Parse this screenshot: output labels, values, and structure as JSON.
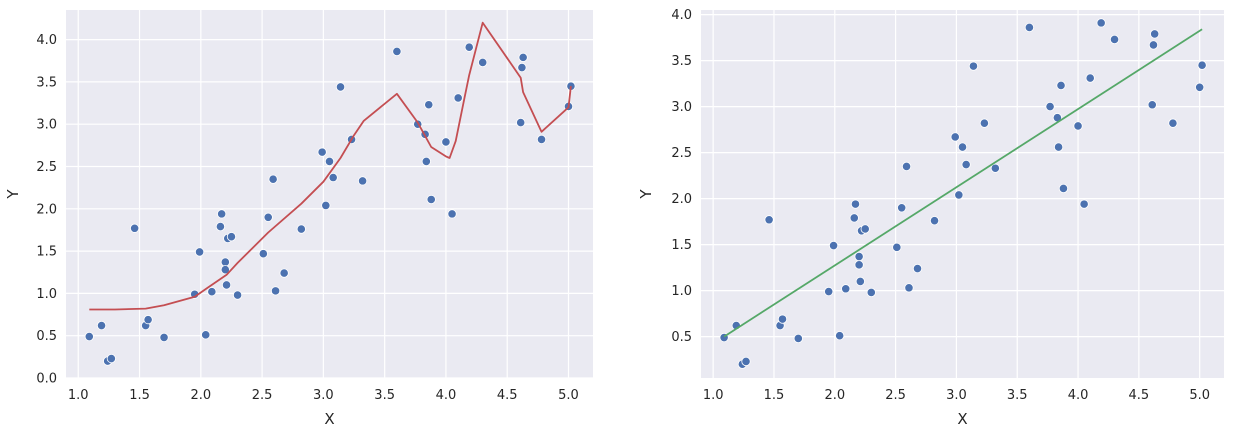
{
  "chart_data": [
    {
      "type": "scatter",
      "xlabel": "X",
      "ylabel": "Y",
      "xlim": [
        0.9,
        5.2
      ],
      "ylim": [
        0.0,
        4.35
      ],
      "xticks": [
        "1.0",
        "1.5",
        "2.0",
        "2.5",
        "3.0",
        "3.5",
        "4.0",
        "4.5",
        "5.0"
      ],
      "yticks": [
        "0.0",
        "0.5",
        "1.0",
        "1.5",
        "2.0",
        "2.5",
        "3.0",
        "3.5",
        "4.0"
      ],
      "grid": true,
      "background": "#eaeaf2",
      "point_color": "#4c72b0",
      "line_color": "#c44e52",
      "points": [
        [
          1.09,
          0.49
        ],
        [
          1.19,
          0.62
        ],
        [
          1.24,
          0.2
        ],
        [
          1.27,
          0.23
        ],
        [
          1.46,
          1.77
        ],
        [
          1.55,
          0.62
        ],
        [
          1.57,
          0.69
        ],
        [
          1.7,
          0.48
        ],
        [
          1.95,
          0.99
        ],
        [
          1.99,
          1.49
        ],
        [
          2.04,
          0.51
        ],
        [
          2.09,
          1.02
        ],
        [
          2.16,
          1.79
        ],
        [
          2.17,
          1.94
        ],
        [
          2.2,
          1.37
        ],
        [
          2.2,
          1.28
        ],
        [
          2.21,
          1.1
        ],
        [
          2.22,
          1.65
        ],
        [
          2.25,
          1.67
        ],
        [
          2.3,
          0.98
        ],
        [
          2.51,
          1.47
        ],
        [
          2.55,
          1.9
        ],
        [
          2.59,
          2.35
        ],
        [
          2.61,
          1.03
        ],
        [
          2.68,
          1.24
        ],
        [
          2.82,
          1.76
        ],
        [
          2.99,
          2.67
        ],
        [
          3.02,
          2.04
        ],
        [
          3.05,
          2.56
        ],
        [
          3.08,
          2.37
        ],
        [
          3.14,
          3.44
        ],
        [
          3.23,
          2.82
        ],
        [
          3.32,
          2.33
        ],
        [
          3.6,
          3.86
        ],
        [
          3.77,
          3.0
        ],
        [
          3.83,
          2.88
        ],
        [
          3.84,
          2.56
        ],
        [
          3.86,
          3.23
        ],
        [
          3.88,
          2.11
        ],
        [
          4.0,
          2.79
        ],
        [
          4.05,
          1.94
        ],
        [
          4.1,
          3.31
        ],
        [
          4.19,
          3.91
        ],
        [
          4.3,
          3.73
        ],
        [
          4.61,
          3.02
        ],
        [
          4.62,
          3.67
        ],
        [
          4.63,
          3.79
        ],
        [
          4.78,
          2.82
        ],
        [
          5.0,
          3.21
        ],
        [
          5.02,
          3.45
        ]
      ],
      "line": [
        [
          1.09,
          0.81
        ],
        [
          1.3,
          0.81
        ],
        [
          1.55,
          0.82
        ],
        [
          1.7,
          0.86
        ],
        [
          1.95,
          0.96
        ],
        [
          2.05,
          1.06
        ],
        [
          2.21,
          1.22
        ],
        [
          2.3,
          1.36
        ],
        [
          2.55,
          1.72
        ],
        [
          2.82,
          2.06
        ],
        [
          3.0,
          2.32
        ],
        [
          3.14,
          2.6
        ],
        [
          3.25,
          2.87
        ],
        [
          3.33,
          3.04
        ],
        [
          3.6,
          3.36
        ],
        [
          3.77,
          3.02
        ],
        [
          3.88,
          2.73
        ],
        [
          4.0,
          2.62
        ],
        [
          4.03,
          2.6
        ],
        [
          4.08,
          2.8
        ],
        [
          4.15,
          3.3
        ],
        [
          4.19,
          3.58
        ],
        [
          4.3,
          4.2
        ],
        [
          4.61,
          3.55
        ],
        [
          4.63,
          3.38
        ],
        [
          4.78,
          2.91
        ],
        [
          5.0,
          3.2
        ],
        [
          5.02,
          3.45
        ]
      ]
    },
    {
      "type": "scatter",
      "xlabel": "X",
      "ylabel": "Y",
      "xlim": [
        0.9,
        5.2
      ],
      "ylim": [
        0.05,
        4.05
      ],
      "xticks": [
        "1.0",
        "1.5",
        "2.0",
        "2.5",
        "3.0",
        "3.5",
        "4.0",
        "4.5",
        "5.0"
      ],
      "yticks": [
        "0.5",
        "1.0",
        "1.5",
        "2.0",
        "2.5",
        "3.0",
        "3.5",
        "4.0"
      ],
      "grid": true,
      "background": "#eaeaf2",
      "point_color": "#4c72b0",
      "line_color": "#55a868",
      "points": [
        [
          1.09,
          0.49
        ],
        [
          1.19,
          0.62
        ],
        [
          1.24,
          0.2
        ],
        [
          1.27,
          0.23
        ],
        [
          1.46,
          1.77
        ],
        [
          1.55,
          0.62
        ],
        [
          1.57,
          0.69
        ],
        [
          1.7,
          0.48
        ],
        [
          1.95,
          0.99
        ],
        [
          1.99,
          1.49
        ],
        [
          2.04,
          0.51
        ],
        [
          2.09,
          1.02
        ],
        [
          2.16,
          1.79
        ],
        [
          2.17,
          1.94
        ],
        [
          2.2,
          1.37
        ],
        [
          2.2,
          1.28
        ],
        [
          2.21,
          1.1
        ],
        [
          2.22,
          1.65
        ],
        [
          2.25,
          1.67
        ],
        [
          2.3,
          0.98
        ],
        [
          2.51,
          1.47
        ],
        [
          2.55,
          1.9
        ],
        [
          2.59,
          2.35
        ],
        [
          2.61,
          1.03
        ],
        [
          2.68,
          1.24
        ],
        [
          2.82,
          1.76
        ],
        [
          2.99,
          2.67
        ],
        [
          3.02,
          2.04
        ],
        [
          3.05,
          2.56
        ],
        [
          3.08,
          2.37
        ],
        [
          3.14,
          3.44
        ],
        [
          3.23,
          2.82
        ],
        [
          3.32,
          2.33
        ],
        [
          3.6,
          3.86
        ],
        [
          3.77,
          3.0
        ],
        [
          3.83,
          2.88
        ],
        [
          3.84,
          2.56
        ],
        [
          3.86,
          3.23
        ],
        [
          3.88,
          2.11
        ],
        [
          4.0,
          2.79
        ],
        [
          4.05,
          1.94
        ],
        [
          4.1,
          3.31
        ],
        [
          4.19,
          3.91
        ],
        [
          4.3,
          3.73
        ],
        [
          4.61,
          3.02
        ],
        [
          4.62,
          3.67
        ],
        [
          4.63,
          3.79
        ],
        [
          4.78,
          2.82
        ],
        [
          5.0,
          3.21
        ],
        [
          5.02,
          3.45
        ]
      ],
      "line": [
        [
          1.09,
          0.5
        ],
        [
          5.02,
          3.84
        ]
      ]
    }
  ]
}
